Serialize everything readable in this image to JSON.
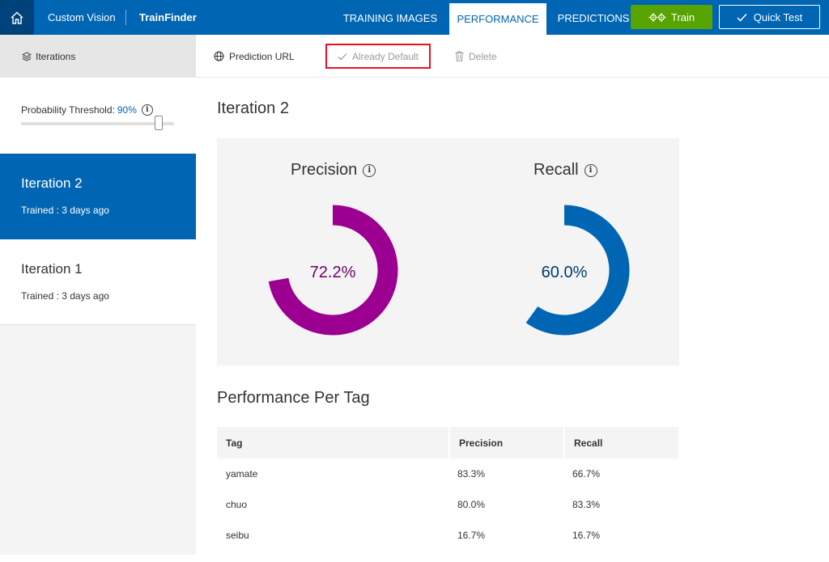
{
  "header": {
    "app_name": "Custom Vision",
    "project_name": "TrainFinder",
    "tabs": [
      {
        "label": "TRAINING IMAGES",
        "active": false
      },
      {
        "label": "PERFORMANCE",
        "active": true
      },
      {
        "label": "PREDICTIONS",
        "active": false
      }
    ],
    "train_label": "Train",
    "quick_test_label": "Quick Test"
  },
  "colors": {
    "brand_blue": "#0065b3",
    "train_green": "#57a300",
    "precision_purple": "#9b0091",
    "recall_blue": "#0065b3",
    "highlight_red": "#e81123"
  },
  "sidebar": {
    "header_label": "Iterations",
    "threshold_label": "Probability Threshold:",
    "threshold_value": "90%",
    "threshold_fraction": 0.9,
    "iterations": [
      {
        "name": "Iteration 2",
        "status": "Trained : 3 days ago",
        "selected": true
      },
      {
        "name": "Iteration 1",
        "status": "Trained : 3 days ago",
        "selected": false
      }
    ]
  },
  "toolbar": {
    "prediction_url_label": "Prediction URL",
    "default_label": "Already Default",
    "delete_label": "Delete"
  },
  "main": {
    "title": "Iteration 2",
    "precision": {
      "label": "Precision",
      "value_text": "72.2%",
      "fraction": 0.722
    },
    "recall": {
      "label": "Recall",
      "value_text": "60.0%",
      "fraction": 0.6
    },
    "per_tag_title": "Performance Per Tag",
    "table": {
      "headers": [
        "Tag",
        "Precision",
        "Recall"
      ],
      "rows": [
        [
          "yamate",
          "83.3%",
          "66.7%"
        ],
        [
          "chuo",
          "80.0%",
          "83.3%"
        ],
        [
          "seibu",
          "16.7%",
          "16.7%"
        ]
      ]
    }
  }
}
